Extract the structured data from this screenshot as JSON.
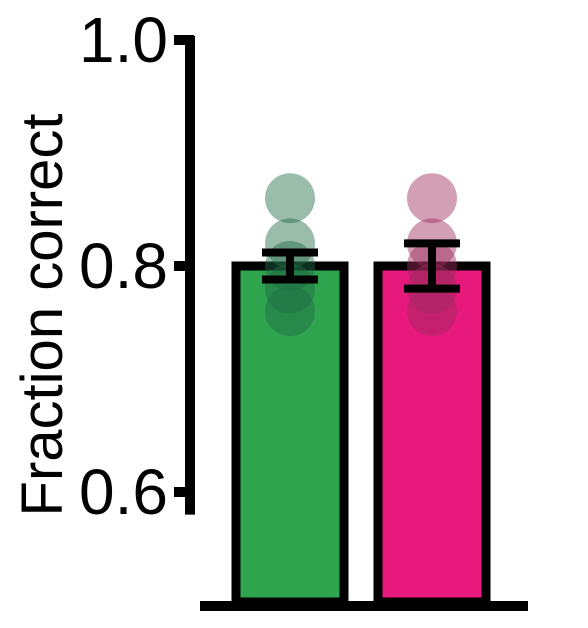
{
  "chart_data": {
    "type": "bar",
    "title": "",
    "xlabel": "",
    "ylabel": "Fraction correct",
    "ylim": [
      0.5,
      1.0
    ],
    "yticks": [
      {
        "value": 0.6,
        "label": "0.6"
      },
      {
        "value": 0.8,
        "label": "0.8"
      },
      {
        "value": 1.0,
        "label": "1.0"
      }
    ],
    "categories": [
      "",
      ""
    ],
    "bars": [
      {
        "value": 0.8,
        "error": 0.012,
        "fill": "#2EA44F",
        "point_color": "#1E6B45",
        "points": [
          0.86,
          0.82,
          0.8,
          0.78,
          0.76
        ]
      },
      {
        "value": 0.8,
        "error": 0.02,
        "fill": "#E8197D",
        "point_color": "#9C2A5C",
        "points": [
          0.86,
          0.82,
          0.8,
          0.78,
          0.76
        ]
      }
    ],
    "grid": false,
    "legend": "none"
  }
}
